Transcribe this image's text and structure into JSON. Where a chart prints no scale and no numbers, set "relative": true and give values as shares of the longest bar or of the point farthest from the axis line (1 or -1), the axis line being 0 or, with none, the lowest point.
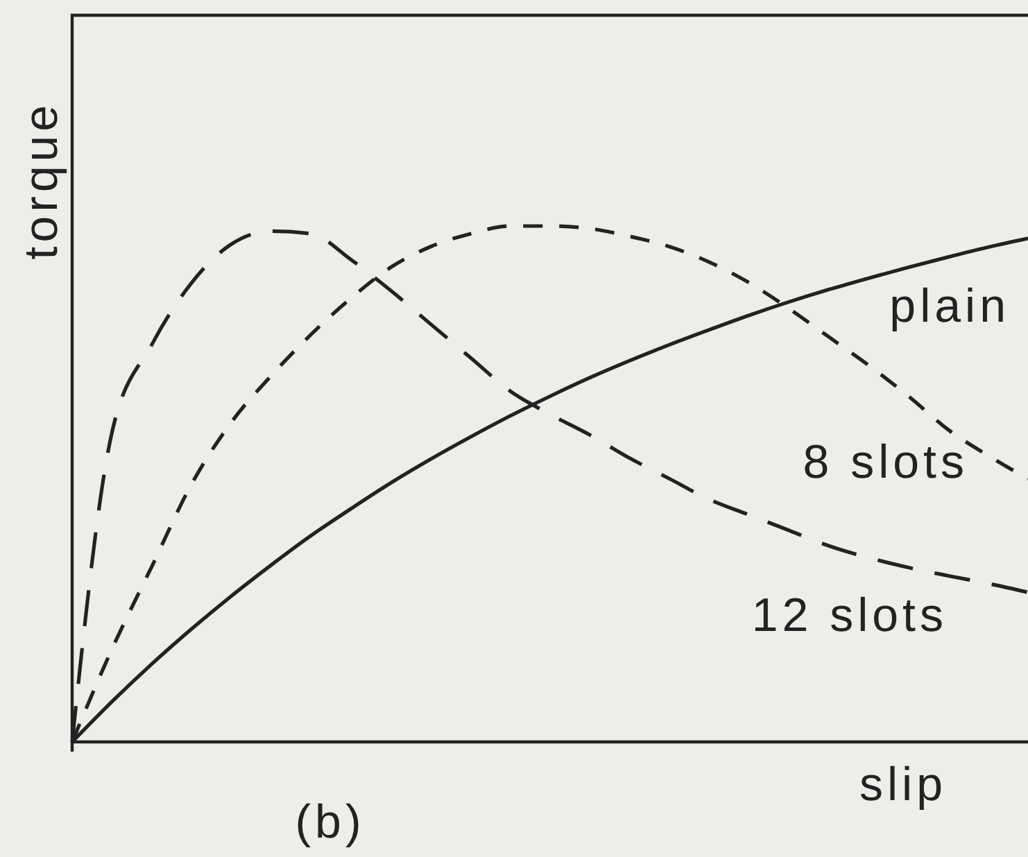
{
  "chart_data": {
    "type": "line",
    "relative": true,
    "xlabel": "slip",
    "ylabel": "torque",
    "annotations": [
      "(b)"
    ],
    "categories": [
      null,
      null,
      null,
      null,
      null,
      null,
      null,
      null,
      null,
      null,
      null,
      null,
      null,
      null,
      null,
      null,
      null,
      null,
      null,
      null,
      null,
      null,
      null,
      null,
      null
    ],
    "series": [
      {
        "name": "plain",
        "color": "#222222",
        "line_style": "solid",
        "values": [
          0,
          0.078,
          0.151,
          0.219,
          0.283,
          0.343,
          0.4,
          0.452,
          0.502,
          0.548,
          0.591,
          0.632,
          0.67,
          0.706,
          0.739,
          0.77,
          0.799,
          0.827,
          0.853,
          0.877,
          0.899,
          0.92,
          0.94,
          0.959,
          0.976
        ]
      },
      {
        "name": "8 slots",
        "color": "#222222",
        "line_style": "dashed",
        "values": [
          0,
          0.18,
          0.34,
          0.5,
          0.62,
          0.71,
          0.79,
          0.86,
          0.92,
          0.96,
          0.985,
          1.0,
          1.0,
          0.995,
          0.98,
          0.96,
          0.93,
          0.89,
          0.84,
          0.785,
          0.73,
          0.67,
          0.605,
          0.555,
          0.51
        ]
      },
      {
        "name": "12 slots",
        "color": "#222222",
        "line_style": "dashed",
        "values": [
          0,
          0.6,
          0.77,
          0.89,
          0.965,
          0.99,
          0.985,
          0.935,
          0.875,
          0.81,
          0.745,
          0.68,
          0.635,
          0.595,
          0.55,
          0.51,
          0.47,
          0.44,
          0.41,
          0.38,
          0.357,
          0.338,
          0.322,
          0.307,
          0.29
        ]
      }
    ]
  }
}
